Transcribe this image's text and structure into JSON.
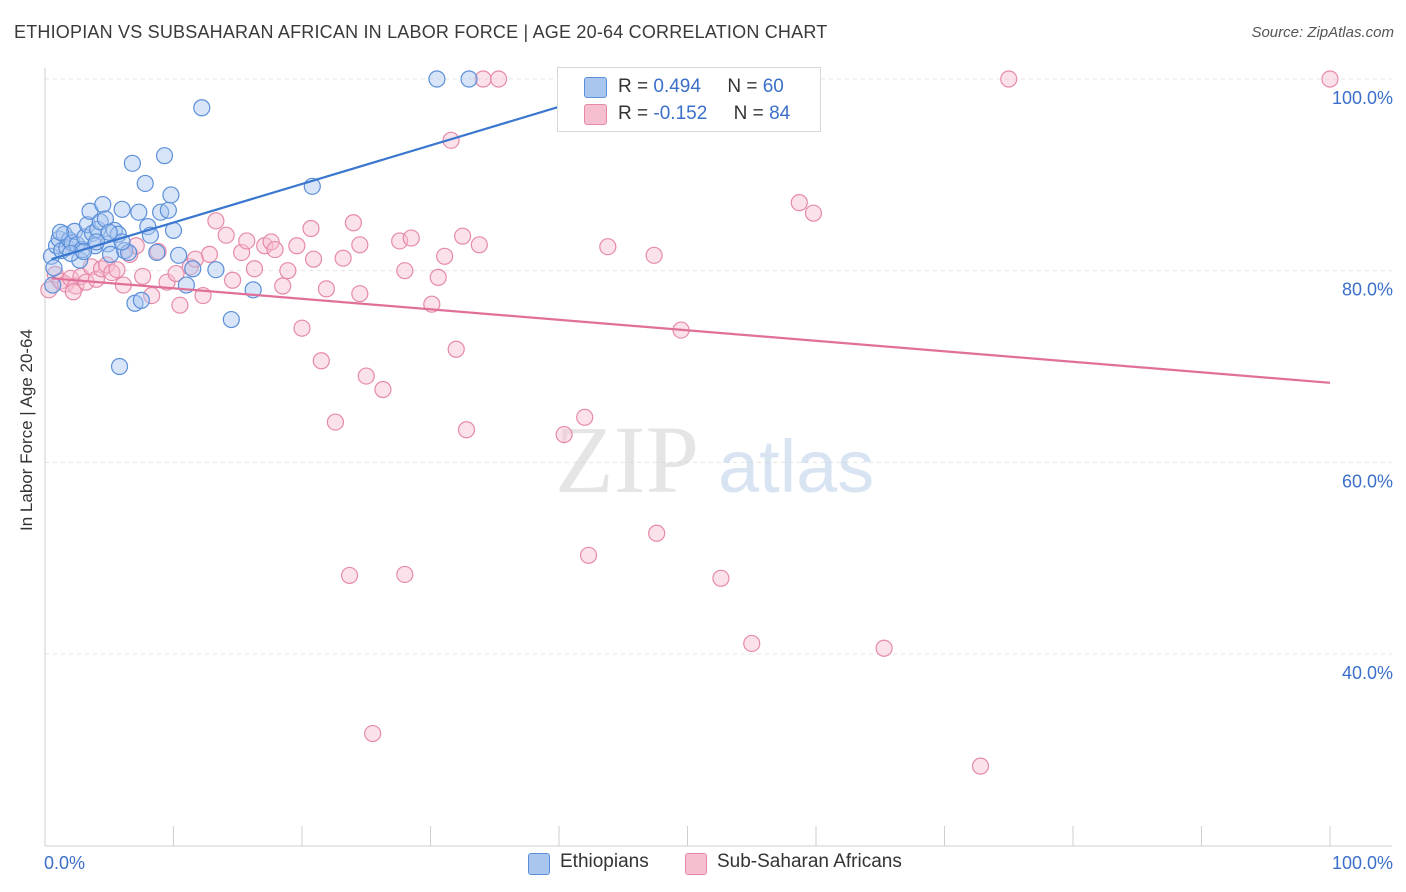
{
  "title": "ETHIOPIAN VS SUBSAHARAN AFRICAN IN LABOR FORCE | AGE 20-64 CORRELATION CHART",
  "source": "Source: ZipAtlas.com",
  "watermark": {
    "zip": "ZIP",
    "atlas": "atlas"
  },
  "legend": {
    "r_label": "R =",
    "n_label": "N =",
    "rows": [
      {
        "r": "0.494",
        "n": "60"
      },
      {
        "r": "-0.152",
        "n": "84"
      }
    ]
  },
  "bottom_legend": [
    "Ethiopians",
    "Sub-Saharan Africans"
  ],
  "colors": {
    "blue_fill": "#a9c6ef",
    "blue_stroke": "#5b8fd9",
    "blue_line": "#3a77cf",
    "pink_fill": "#f6bfd0",
    "pink_stroke": "#e68aa8",
    "pink_line": "#e0709a",
    "tick_label": "#3b6fc9",
    "grid": "#e4e4e4"
  },
  "chart_data": {
    "type": "scatter",
    "title": "ETHIOPIAN VS SUBSAHARAN AFRICAN IN LABOR FORCE | AGE 20-64 CORRELATION CHART",
    "xlabel": "",
    "ylabel": "In Labor Force | Age 20-64",
    "xlim": [
      0,
      100
    ],
    "ylim": [
      18,
      103
    ],
    "x_tick_labels": [
      "0.0%",
      "100.0%"
    ],
    "y_ticks": [
      40,
      60,
      80,
      100
    ],
    "y_tick_labels": [
      "40.0%",
      "60.0%",
      "80.0%",
      "100.0%"
    ],
    "grid": true,
    "series": [
      {
        "name": "Ethiopians",
        "r": 0.494,
        "n": 60,
        "trend": {
          "x": [
            0.5,
            41
          ],
          "y": [
            81.2,
            97.5
          ]
        },
        "points": [
          [
            0.5,
            81.5
          ],
          [
            0.7,
            80.3
          ],
          [
            0.9,
            82.6
          ],
          [
            1.1,
            83.3
          ],
          [
            1.3,
            82.1
          ],
          [
            1.5,
            83.8
          ],
          [
            1.7,
            82.4
          ],
          [
            1.9,
            83.2
          ],
          [
            2.1,
            82.9
          ],
          [
            2.3,
            84.1
          ],
          [
            2.5,
            82.7
          ],
          [
            2.7,
            81.1
          ],
          [
            2.9,
            82.2
          ],
          [
            3.1,
            83.5
          ],
          [
            3.3,
            84.8
          ],
          [
            3.5,
            86.2
          ],
          [
            3.7,
            83.9
          ],
          [
            3.9,
            82.6
          ],
          [
            4.1,
            84.3
          ],
          [
            4.3,
            85.1
          ],
          [
            4.5,
            86.9
          ],
          [
            4.7,
            85.4
          ],
          [
            4.9,
            82.8
          ],
          [
            5.1,
            81.7
          ],
          [
            5.4,
            84.2
          ],
          [
            5.7,
            83.8
          ],
          [
            6.0,
            86.4
          ],
          [
            6.2,
            82.1
          ],
          [
            6.5,
            81.9
          ],
          [
            6.8,
            91.2
          ],
          [
            7.0,
            76.6
          ],
          [
            7.3,
            86.1
          ],
          [
            7.5,
            76.9
          ],
          [
            7.8,
            89.1
          ],
          [
            8.0,
            84.6
          ],
          [
            8.2,
            83.7
          ],
          [
            8.7,
            81.9
          ],
          [
            9.0,
            86.1
          ],
          [
            9.3,
            92.0
          ],
          [
            9.6,
            86.3
          ],
          [
            9.8,
            87.9
          ],
          [
            10.0,
            84.2
          ],
          [
            10.4,
            81.6
          ],
          [
            11.0,
            78.5
          ],
          [
            11.5,
            80.2
          ],
          [
            12.2,
            97.0
          ],
          [
            13.3,
            80.1
          ],
          [
            14.5,
            74.9
          ],
          [
            16.2,
            78.0
          ],
          [
            20.8,
            88.8
          ],
          [
            30.5,
            100.0
          ],
          [
            33.0,
            100.0
          ],
          [
            5.8,
            70.0
          ],
          [
            1.2,
            84.0
          ],
          [
            2.0,
            81.8
          ],
          [
            3.0,
            82.0
          ],
          [
            4.0,
            83.0
          ],
          [
            5.0,
            84.0
          ],
          [
            6.0,
            83.0
          ],
          [
            0.6,
            78.5
          ]
        ]
      },
      {
        "name": "Sub-Saharan Africans",
        "r": -0.152,
        "n": 84,
        "trend": {
          "x": [
            0.5,
            100
          ],
          "y": [
            79.2,
            68.3
          ]
        },
        "points": [
          [
            0.3,
            78.0
          ],
          [
            0.8,
            79.6
          ],
          [
            1.2,
            78.9
          ],
          [
            1.6,
            78.6
          ],
          [
            2.0,
            79.2
          ],
          [
            2.4,
            78.4
          ],
          [
            2.8,
            79.4
          ],
          [
            3.2,
            78.8
          ],
          [
            3.6,
            80.4
          ],
          [
            4.0,
            79.1
          ],
          [
            4.4,
            80.2
          ],
          [
            4.8,
            80.6
          ],
          [
            5.2,
            79.8
          ],
          [
            5.6,
            80.1
          ],
          [
            6.1,
            78.5
          ],
          [
            6.6,
            81.7
          ],
          [
            7.1,
            82.6
          ],
          [
            7.6,
            79.4
          ],
          [
            8.3,
            77.4
          ],
          [
            8.8,
            82.0
          ],
          [
            9.5,
            78.8
          ],
          [
            10.2,
            79.7
          ],
          [
            10.5,
            76.4
          ],
          [
            11.3,
            80.4
          ],
          [
            11.7,
            81.2
          ],
          [
            12.3,
            77.4
          ],
          [
            12.8,
            81.7
          ],
          [
            13.3,
            85.2
          ],
          [
            14.1,
            83.7
          ],
          [
            14.6,
            79.0
          ],
          [
            15.3,
            81.9
          ],
          [
            15.7,
            83.1
          ],
          [
            16.3,
            80.2
          ],
          [
            17.1,
            82.6
          ],
          [
            17.6,
            83.0
          ],
          [
            17.9,
            82.2
          ],
          [
            18.5,
            78.4
          ],
          [
            18.9,
            80.0
          ],
          [
            19.6,
            82.6
          ],
          [
            20.0,
            74.0
          ],
          [
            20.7,
            84.4
          ],
          [
            20.9,
            81.2
          ],
          [
            21.5,
            70.6
          ],
          [
            21.9,
            78.1
          ],
          [
            22.6,
            64.2
          ],
          [
            23.2,
            81.3
          ],
          [
            23.7,
            48.2
          ],
          [
            24.0,
            85.0
          ],
          [
            24.5,
            82.7
          ],
          [
            24.5,
            77.6
          ],
          [
            25.0,
            69.0
          ],
          [
            25.5,
            31.7
          ],
          [
            26.3,
            67.6
          ],
          [
            27.6,
            83.1
          ],
          [
            28.0,
            80.0
          ],
          [
            28.0,
            48.3
          ],
          [
            28.5,
            83.4
          ],
          [
            30.1,
            76.5
          ],
          [
            30.6,
            79.3
          ],
          [
            31.1,
            81.5
          ],
          [
            31.6,
            93.6
          ],
          [
            32.0,
            71.8
          ],
          [
            32.5,
            83.6
          ],
          [
            32.8,
            63.4
          ],
          [
            33.8,
            82.7
          ],
          [
            34.1,
            100.0
          ],
          [
            35.3,
            100.0
          ],
          [
            40.4,
            62.9
          ],
          [
            42.0,
            64.7
          ],
          [
            42.3,
            50.3
          ],
          [
            43.8,
            82.5
          ],
          [
            44.5,
            100.0
          ],
          [
            47.4,
            81.6
          ],
          [
            47.6,
            52.6
          ],
          [
            49.5,
            73.8
          ],
          [
            52.6,
            47.9
          ],
          [
            55.0,
            41.1
          ],
          [
            58.7,
            87.1
          ],
          [
            59.8,
            86.0
          ],
          [
            65.3,
            40.6
          ],
          [
            72.8,
            28.3
          ],
          [
            75.0,
            100.0
          ],
          [
            100,
            100.0
          ],
          [
            2.2,
            77.8
          ]
        ]
      }
    ]
  }
}
